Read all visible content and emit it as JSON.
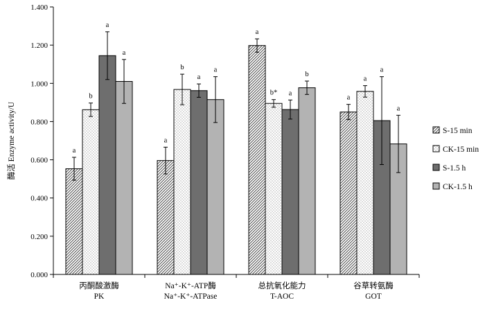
{
  "chart_data": {
    "type": "bar",
    "title": "",
    "xlabel": "",
    "ylabel": "酶活 Enzyme activity/U",
    "ylim": [
      0,
      1.4
    ],
    "yticks": [
      "0.000",
      "0.200",
      "0.400",
      "0.600",
      "0.800",
      "1.000",
      "1.200",
      "1.400"
    ],
    "grid": false,
    "legend_position": "right",
    "categories": [
      {
        "line1": "丙酮酸激酶",
        "line2": "PK"
      },
      {
        "line1": "Na⁺-K⁺-ATP酶",
        "line2": "Na⁺-K⁺-ATPase"
      },
      {
        "line1": "总抗氧化能力",
        "line2": "T-AOC"
      },
      {
        "line1": "谷草转氨酶",
        "line2": "GOT"
      }
    ],
    "series": [
      {
        "name": "S-15 min",
        "pattern": "diagonal",
        "values": [
          0.553,
          0.596,
          1.198,
          0.85
        ],
        "errors": [
          0.06,
          0.07,
          0.035,
          0.04
        ],
        "labels": [
          "a",
          "a",
          "a",
          "a"
        ]
      },
      {
        "name": "CK-15 min",
        "pattern": "dotted",
        "values": [
          0.862,
          0.968,
          0.895,
          0.958
        ],
        "errors": [
          0.035,
          0.08,
          0.02,
          0.03
        ],
        "labels": [
          "b",
          "b",
          "b*",
          "a"
        ]
      },
      {
        "name": "S-1.5 h",
        "pattern": "dark",
        "values": [
          1.145,
          0.962,
          0.863,
          0.805
        ],
        "errors": [
          0.125,
          0.035,
          0.05,
          0.23
        ],
        "labels": [
          "a",
          "a",
          "a",
          "a"
        ]
      },
      {
        "name": "CK-1.5 h",
        "pattern": "light",
        "values": [
          1.01,
          0.915,
          0.977,
          0.683
        ],
        "errors": [
          0.115,
          0.12,
          0.035,
          0.15
        ],
        "labels": [
          "a",
          "a",
          "b",
          "a"
        ]
      }
    ],
    "colors": {
      "dark": "#6e6e6e",
      "light": "#b3b3b3",
      "axis": "#000000"
    }
  }
}
